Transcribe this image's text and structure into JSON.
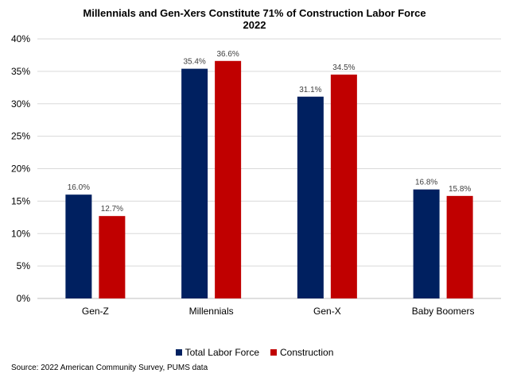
{
  "chart_data": {
    "type": "bar",
    "title": "Millennials and Gen-Xers Constitute 71% of Construction Labor Force",
    "subtitle": "2022",
    "categories": [
      "Gen-Z",
      "Millennials",
      "Gen-X",
      "Baby Boomers"
    ],
    "series": [
      {
        "name": "Total Labor Force",
        "color": "#002060",
        "values": [
          16.0,
          35.4,
          31.1,
          16.8
        ],
        "labels": [
          "16.0%",
          "35.4%",
          "31.1%",
          "16.8%"
        ]
      },
      {
        "name": "Construction",
        "color": "#C00000",
        "values": [
          12.7,
          36.6,
          34.5,
          15.8
        ],
        "labels": [
          "12.7%",
          "36.6%",
          "34.5%",
          "15.8%"
        ]
      }
    ],
    "yticks": [
      "0%",
      "5%",
      "10%",
      "15%",
      "20%",
      "25%",
      "30%",
      "35%",
      "40%"
    ],
    "ylim": [
      0,
      40
    ],
    "grid": true,
    "legend": "bottom",
    "source": "Source: 2022 American Community Survey, PUMS data"
  }
}
